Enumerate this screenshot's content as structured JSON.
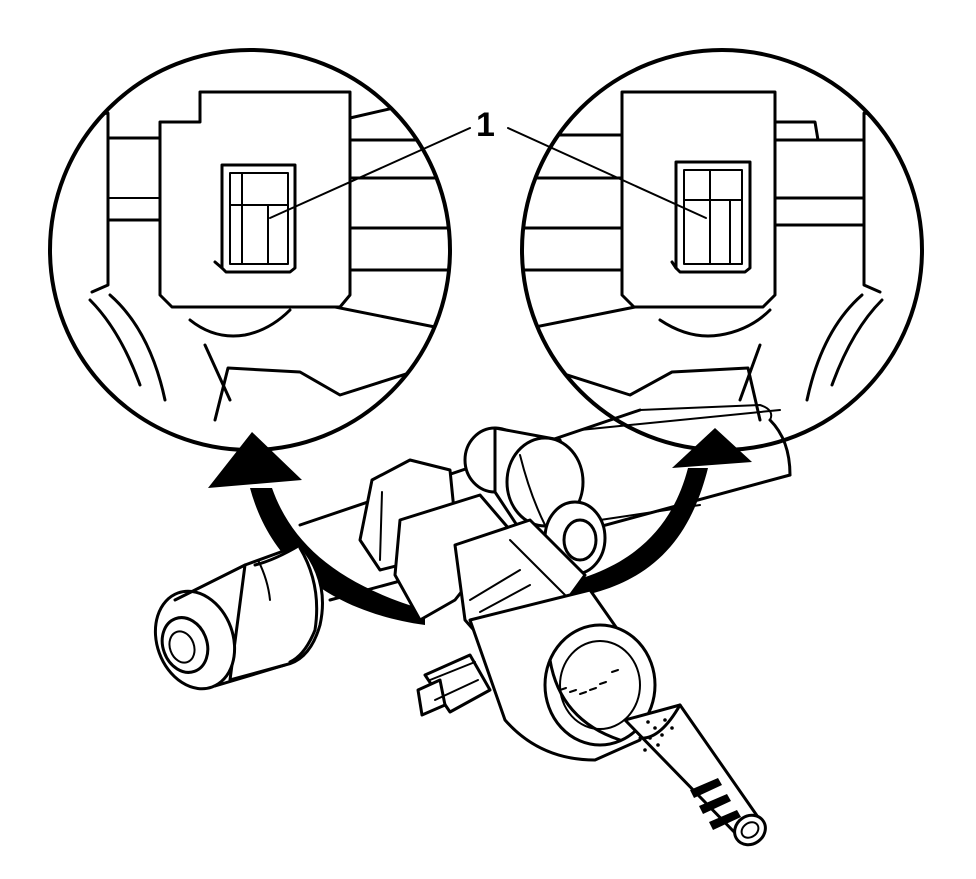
{
  "diagram": {
    "callouts": [
      {
        "label": "1"
      }
    ],
    "icons": [
      "curved-arrow-left-icon",
      "curved-arrow-right-icon"
    ],
    "colors": {
      "line": "#000000",
      "background": "#ffffff"
    }
  }
}
